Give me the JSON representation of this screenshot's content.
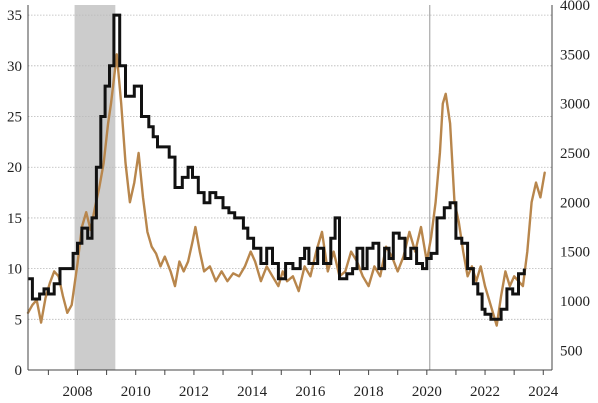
{
  "chart_data": {
    "type": "line",
    "title": "",
    "xlabel": "",
    "ylabel": "",
    "xlim": [
      2006.3,
      2024.3
    ],
    "ylim_left": [
      0,
      36
    ],
    "ylim_right": [
      300,
      4000
    ],
    "x_ticks": [
      2008,
      2010,
      2012,
      2014,
      2016,
      2018,
      2020,
      2022,
      2024
    ],
    "y_ticks_left": [
      0,
      5,
      10,
      15,
      20,
      25,
      30,
      35
    ],
    "y_ticks_right": [
      500,
      1000,
      1500,
      2000,
      2500,
      3000,
      3500,
      4000
    ],
    "grid": "horizontal dotted",
    "legend": "none",
    "shaded_ranges": [
      {
        "start": 2007.9,
        "end": 2009.3,
        "color": "#cccccc"
      }
    ],
    "reference_lines": [
      {
        "x": 2020.1,
        "color": "#aaaaaa"
      }
    ],
    "series": [
      {
        "axis": "left",
        "style": "step",
        "color": "#111111",
        "points": [
          [
            2006.3,
            9
          ],
          [
            2006.45,
            7
          ],
          [
            2006.7,
            7.5
          ],
          [
            2006.85,
            8
          ],
          [
            2007.0,
            7.5
          ],
          [
            2007.2,
            8.5
          ],
          [
            2007.4,
            10
          ],
          [
            2007.7,
            10
          ],
          [
            2007.85,
            11.5
          ],
          [
            2008.0,
            12.5
          ],
          [
            2008.15,
            14
          ],
          [
            2008.35,
            13
          ],
          [
            2008.5,
            15
          ],
          [
            2008.65,
            20
          ],
          [
            2008.8,
            25
          ],
          [
            2008.95,
            28
          ],
          [
            2009.1,
            30
          ],
          [
            2009.25,
            35
          ],
          [
            2009.45,
            30
          ],
          [
            2009.65,
            27
          ],
          [
            2009.8,
            27
          ],
          [
            2009.95,
            28
          ],
          [
            2010.2,
            25
          ],
          [
            2010.45,
            24
          ],
          [
            2010.6,
            23
          ],
          [
            2010.75,
            22
          ],
          [
            2010.9,
            22
          ],
          [
            2011.15,
            21
          ],
          [
            2011.35,
            18
          ],
          [
            2011.6,
            19
          ],
          [
            2011.8,
            20
          ],
          [
            2011.95,
            19
          ],
          [
            2012.15,
            17.5
          ],
          [
            2012.35,
            16.5
          ],
          [
            2012.55,
            17.5
          ],
          [
            2012.75,
            17
          ],
          [
            2013.0,
            16
          ],
          [
            2013.2,
            15.5
          ],
          [
            2013.4,
            15
          ],
          [
            2013.7,
            14
          ],
          [
            2013.85,
            13
          ],
          [
            2014.05,
            12
          ],
          [
            2014.3,
            10.5
          ],
          [
            2014.5,
            12
          ],
          [
            2014.7,
            10.5
          ],
          [
            2014.9,
            9
          ],
          [
            2015.15,
            10.5
          ],
          [
            2015.4,
            10
          ],
          [
            2015.65,
            11
          ],
          [
            2015.8,
            12
          ],
          [
            2015.95,
            10.5
          ],
          [
            2016.25,
            12
          ],
          [
            2016.45,
            10.5
          ],
          [
            2016.7,
            13
          ],
          [
            2016.85,
            15
          ],
          [
            2017.0,
            9
          ],
          [
            2017.25,
            9.5
          ],
          [
            2017.45,
            10
          ],
          [
            2017.6,
            12
          ],
          [
            2017.8,
            10
          ],
          [
            2017.95,
            12
          ],
          [
            2018.15,
            12.5
          ],
          [
            2018.35,
            10
          ],
          [
            2018.55,
            12
          ],
          [
            2018.7,
            11
          ],
          [
            2018.85,
            13.5
          ],
          [
            2019.05,
            13
          ],
          [
            2019.25,
            11
          ],
          [
            2019.45,
            12
          ],
          [
            2019.65,
            10.5
          ],
          [
            2019.85,
            10
          ],
          [
            2020.0,
            11
          ],
          [
            2020.15,
            11.5
          ],
          [
            2020.35,
            15
          ],
          [
            2020.6,
            16
          ],
          [
            2020.8,
            16.5
          ],
          [
            2021.0,
            13
          ],
          [
            2021.2,
            12.5
          ],
          [
            2021.4,
            10
          ],
          [
            2021.6,
            8.5
          ],
          [
            2021.75,
            7.5
          ],
          [
            2021.9,
            6
          ],
          [
            2022.0,
            5.5
          ],
          [
            2022.2,
            5
          ],
          [
            2022.55,
            6
          ],
          [
            2022.75,
            8
          ],
          [
            2022.95,
            7.5
          ],
          [
            2023.15,
            9.5
          ],
          [
            2023.35,
            10
          ]
        ]
      },
      {
        "axis": "right",
        "style": "line",
        "color": "#b8864c",
        "points": [
          [
            2006.3,
            880
          ],
          [
            2006.45,
            960
          ],
          [
            2006.6,
            1010
          ],
          [
            2006.75,
            780
          ],
          [
            2006.9,
            1030
          ],
          [
            2007.05,
            1180
          ],
          [
            2007.2,
            1300
          ],
          [
            2007.35,
            1250
          ],
          [
            2007.5,
            1050
          ],
          [
            2007.65,
            880
          ],
          [
            2007.8,
            960
          ],
          [
            2008.0,
            1380
          ],
          [
            2008.15,
            1750
          ],
          [
            2008.3,
            1900
          ],
          [
            2008.45,
            1720
          ],
          [
            2008.6,
            1950
          ],
          [
            2008.75,
            2150
          ],
          [
            2008.9,
            2400
          ],
          [
            2009.05,
            2800
          ],
          [
            2009.15,
            3000
          ],
          [
            2009.25,
            3250
          ],
          [
            2009.35,
            3500
          ],
          [
            2009.5,
            3000
          ],
          [
            2009.65,
            2400
          ],
          [
            2009.8,
            2000
          ],
          [
            2009.95,
            2200
          ],
          [
            2010.1,
            2500
          ],
          [
            2010.25,
            2050
          ],
          [
            2010.4,
            1700
          ],
          [
            2010.55,
            1550
          ],
          [
            2010.7,
            1480
          ],
          [
            2010.85,
            1350
          ],
          [
            2011.0,
            1450
          ],
          [
            2011.2,
            1300
          ],
          [
            2011.35,
            1150
          ],
          [
            2011.5,
            1400
          ],
          [
            2011.65,
            1300
          ],
          [
            2011.8,
            1400
          ],
          [
            2011.95,
            1600
          ],
          [
            2012.05,
            1750
          ],
          [
            2012.2,
            1500
          ],
          [
            2012.35,
            1300
          ],
          [
            2012.55,
            1350
          ],
          [
            2012.75,
            1200
          ],
          [
            2012.95,
            1300
          ],
          [
            2013.15,
            1200
          ],
          [
            2013.35,
            1280
          ],
          [
            2013.55,
            1250
          ],
          [
            2013.75,
            1350
          ],
          [
            2013.95,
            1500
          ],
          [
            2014.1,
            1400
          ],
          [
            2014.3,
            1200
          ],
          [
            2014.5,
            1350
          ],
          [
            2014.7,
            1250
          ],
          [
            2014.9,
            1150
          ],
          [
            2015.05,
            1300
          ],
          [
            2015.2,
            1200
          ],
          [
            2015.4,
            1250
          ],
          [
            2015.6,
            1100
          ],
          [
            2015.8,
            1350
          ],
          [
            2016.0,
            1250
          ],
          [
            2016.2,
            1500
          ],
          [
            2016.4,
            1700
          ],
          [
            2016.6,
            1300
          ],
          [
            2016.8,
            1500
          ],
          [
            2017.0,
            1250
          ],
          [
            2017.2,
            1300
          ],
          [
            2017.4,
            1500
          ],
          [
            2017.6,
            1400
          ],
          [
            2017.8,
            1250
          ],
          [
            2018.0,
            1150
          ],
          [
            2018.2,
            1350
          ],
          [
            2018.4,
            1250
          ],
          [
            2018.6,
            1550
          ],
          [
            2018.8,
            1450
          ],
          [
            2019.0,
            1300
          ],
          [
            2019.2,
            1450
          ],
          [
            2019.4,
            1700
          ],
          [
            2019.6,
            1500
          ],
          [
            2019.8,
            1750
          ],
          [
            2020.0,
            1400
          ],
          [
            2020.15,
            1650
          ],
          [
            2020.3,
            2000
          ],
          [
            2020.45,
            2500
          ],
          [
            2020.55,
            3000
          ],
          [
            2020.65,
            3100
          ],
          [
            2020.8,
            2800
          ],
          [
            2020.95,
            2000
          ],
          [
            2021.1,
            1800
          ],
          [
            2021.25,
            1500
          ],
          [
            2021.4,
            1250
          ],
          [
            2021.55,
            1350
          ],
          [
            2021.7,
            1200
          ],
          [
            2021.85,
            1350
          ],
          [
            2022.0,
            1150
          ],
          [
            2022.15,
            1000
          ],
          [
            2022.3,
            850
          ],
          [
            2022.4,
            750
          ],
          [
            2022.55,
            1050
          ],
          [
            2022.7,
            1300
          ],
          [
            2022.85,
            1150
          ],
          [
            2023.0,
            1250
          ],
          [
            2023.15,
            1200
          ],
          [
            2023.3,
            1150
          ],
          [
            2023.45,
            1500
          ],
          [
            2023.6,
            2000
          ],
          [
            2023.75,
            2200
          ],
          [
            2023.9,
            2050
          ],
          [
            2024.05,
            2300
          ]
        ]
      }
    ]
  }
}
